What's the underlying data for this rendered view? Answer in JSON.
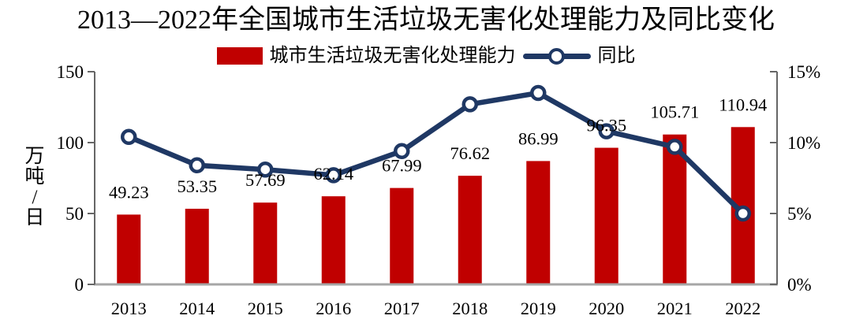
{
  "title": "2013—2022年全国城市生活垃圾无害化处理能力及同比变化",
  "colors": {
    "bar": "#c00000",
    "line": "#1f3864",
    "marker_fill": "#ffffff",
    "axis": "#666666",
    "baseline": "#a6a6a6",
    "text": "#000000"
  },
  "legend": {
    "bar_label": "城市生活垃圾无害化处理能力",
    "line_label": "同比"
  },
  "left_axis": {
    "unit": "万吨/日",
    "unit_vertical": [
      "万",
      "吨",
      "/",
      "日"
    ],
    "ticks": [
      {
        "v": 0,
        "label": "0"
      },
      {
        "v": 50,
        "label": "50"
      },
      {
        "v": 100,
        "label": "100"
      },
      {
        "v": 150,
        "label": "150"
      }
    ]
  },
  "right_axis": {
    "ticks": [
      {
        "v": 0,
        "label": "0%"
      },
      {
        "v": 5,
        "label": "5%"
      },
      {
        "v": 10,
        "label": "10%"
      },
      {
        "v": 15,
        "label": "15%"
      }
    ]
  },
  "chart_data": {
    "type": "bar+line",
    "title": "2013—2022年全国城市生活垃圾无害化处理能力及同比变化",
    "categories": [
      "2013",
      "2014",
      "2015",
      "2016",
      "2017",
      "2018",
      "2019",
      "2020",
      "2021",
      "2022"
    ],
    "series": [
      {
        "name": "城市生活垃圾无害化处理能力",
        "type": "bar",
        "axis": "left",
        "unit": "万吨/日",
        "color": "#c00000",
        "values": [
          49.23,
          53.35,
          57.69,
          62.14,
          67.99,
          76.62,
          86.99,
          96.35,
          105.71,
          110.94
        ],
        "labels": [
          "49.23",
          "53.35",
          "57.69",
          "62.14",
          "67.99",
          "76.62",
          "86.99",
          "96.35",
          "105.71",
          "110.94"
        ]
      },
      {
        "name": "同比",
        "type": "line",
        "axis": "right",
        "unit": "%",
        "color": "#1f3864",
        "values": [
          10.4,
          8.4,
          8.1,
          7.7,
          9.4,
          12.7,
          13.5,
          10.8,
          9.7,
          5.0
        ]
      }
    ],
    "left_ylim": [
      0,
      150
    ],
    "right_ylim_pct": [
      0,
      15
    ],
    "grid": false,
    "legend_position": "top"
  }
}
